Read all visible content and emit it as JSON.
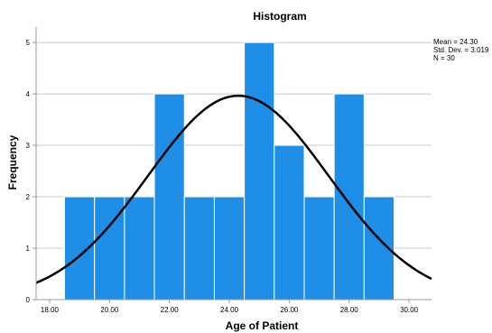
{
  "chart_data": {
    "type": "bar",
    "title": "Histogram",
    "xlabel": "Age of Patient",
    "ylabel": "Frequency",
    "bin_width": 1.0,
    "bins": [
      {
        "start": 18.5,
        "end": 19.5,
        "count": 2
      },
      {
        "start": 19.5,
        "end": 20.5,
        "count": 2
      },
      {
        "start": 20.5,
        "end": 21.5,
        "count": 2
      },
      {
        "start": 21.5,
        "end": 22.5,
        "count": 4
      },
      {
        "start": 22.5,
        "end": 23.5,
        "count": 2
      },
      {
        "start": 23.5,
        "end": 24.5,
        "count": 2
      },
      {
        "start": 24.5,
        "end": 25.5,
        "count": 5
      },
      {
        "start": 25.5,
        "end": 26.5,
        "count": 3
      },
      {
        "start": 26.5,
        "end": 27.5,
        "count": 2
      },
      {
        "start": 27.5,
        "end": 28.5,
        "count": 4
      },
      {
        "start": 28.5,
        "end": 29.5,
        "count": 2
      }
    ],
    "xlim": [
      17.55,
      30.75
    ],
    "ylim": [
      0,
      5.3
    ],
    "x_ticks": [
      "18.00",
      "20.00",
      "22.00",
      "24.00",
      "26.00",
      "28.00",
      "30.00"
    ],
    "x_tick_values": [
      18,
      20,
      22,
      24,
      26,
      28,
      30
    ],
    "y_ticks": [
      "0",
      "1",
      "2",
      "3",
      "4",
      "5"
    ],
    "y_tick_values": [
      0,
      1,
      2,
      3,
      4,
      5
    ],
    "normal_curve": {
      "mean": 24.3,
      "std_dev": 3.019,
      "n": 30
    },
    "grid": "horizontal",
    "stats": [
      "Mean = 24.30",
      "Std. Dev. = 3.019",
      "N = 30"
    ],
    "colors": {
      "bar": "#1f8ee6",
      "bar_edge": "#ffffff",
      "curve": "#000000",
      "grid": "#c8c8c8",
      "axis": "#999999"
    }
  }
}
